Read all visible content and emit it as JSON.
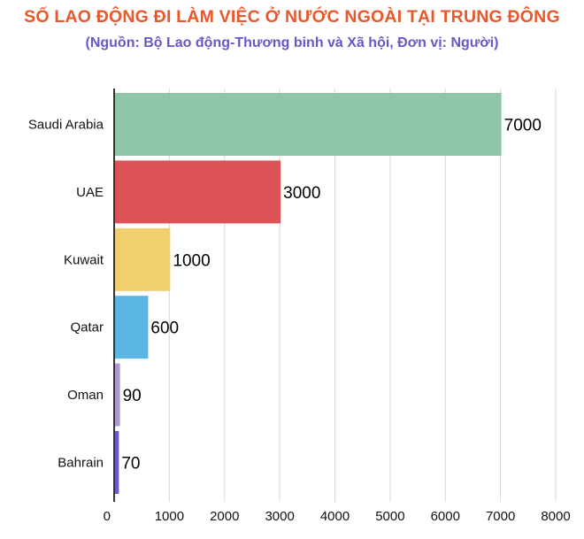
{
  "title": "SỐ LAO ĐỘNG ĐI LÀM VIỆC Ở NƯỚC NGOÀI TẠI TRUNG ĐÔNG",
  "subtitle": "(Nguồn:  Bộ Lao động-Thương binh và Xã hội, Đơn vị: Người)",
  "chart_data": {
    "type": "bar",
    "orientation": "horizontal",
    "categories": [
      "Saudi Arabia",
      "UAE",
      "Kuwait",
      "Qatar",
      "Oman",
      "Bahrain"
    ],
    "values": [
      7000,
      3000,
      1000,
      600,
      90,
      70
    ],
    "value_labels": [
      "7000",
      "3000",
      "1000",
      "600",
      "90",
      "70"
    ],
    "colors": [
      "#8fc5a8",
      "#dd5256",
      "#efcf6e",
      "#5bb6e6",
      "#b195d6",
      "#6a57c9"
    ],
    "xlim": [
      0,
      8000
    ],
    "x_ticks": [
      0,
      1000,
      2000,
      3000,
      4000,
      5000,
      6000,
      7000,
      8000
    ],
    "x_tick_labels": [
      "0",
      "1000",
      "2000",
      "3000",
      "4000",
      "5000",
      "6000",
      "7000",
      "8000"
    ],
    "grid": "vertical",
    "legend": "none"
  }
}
